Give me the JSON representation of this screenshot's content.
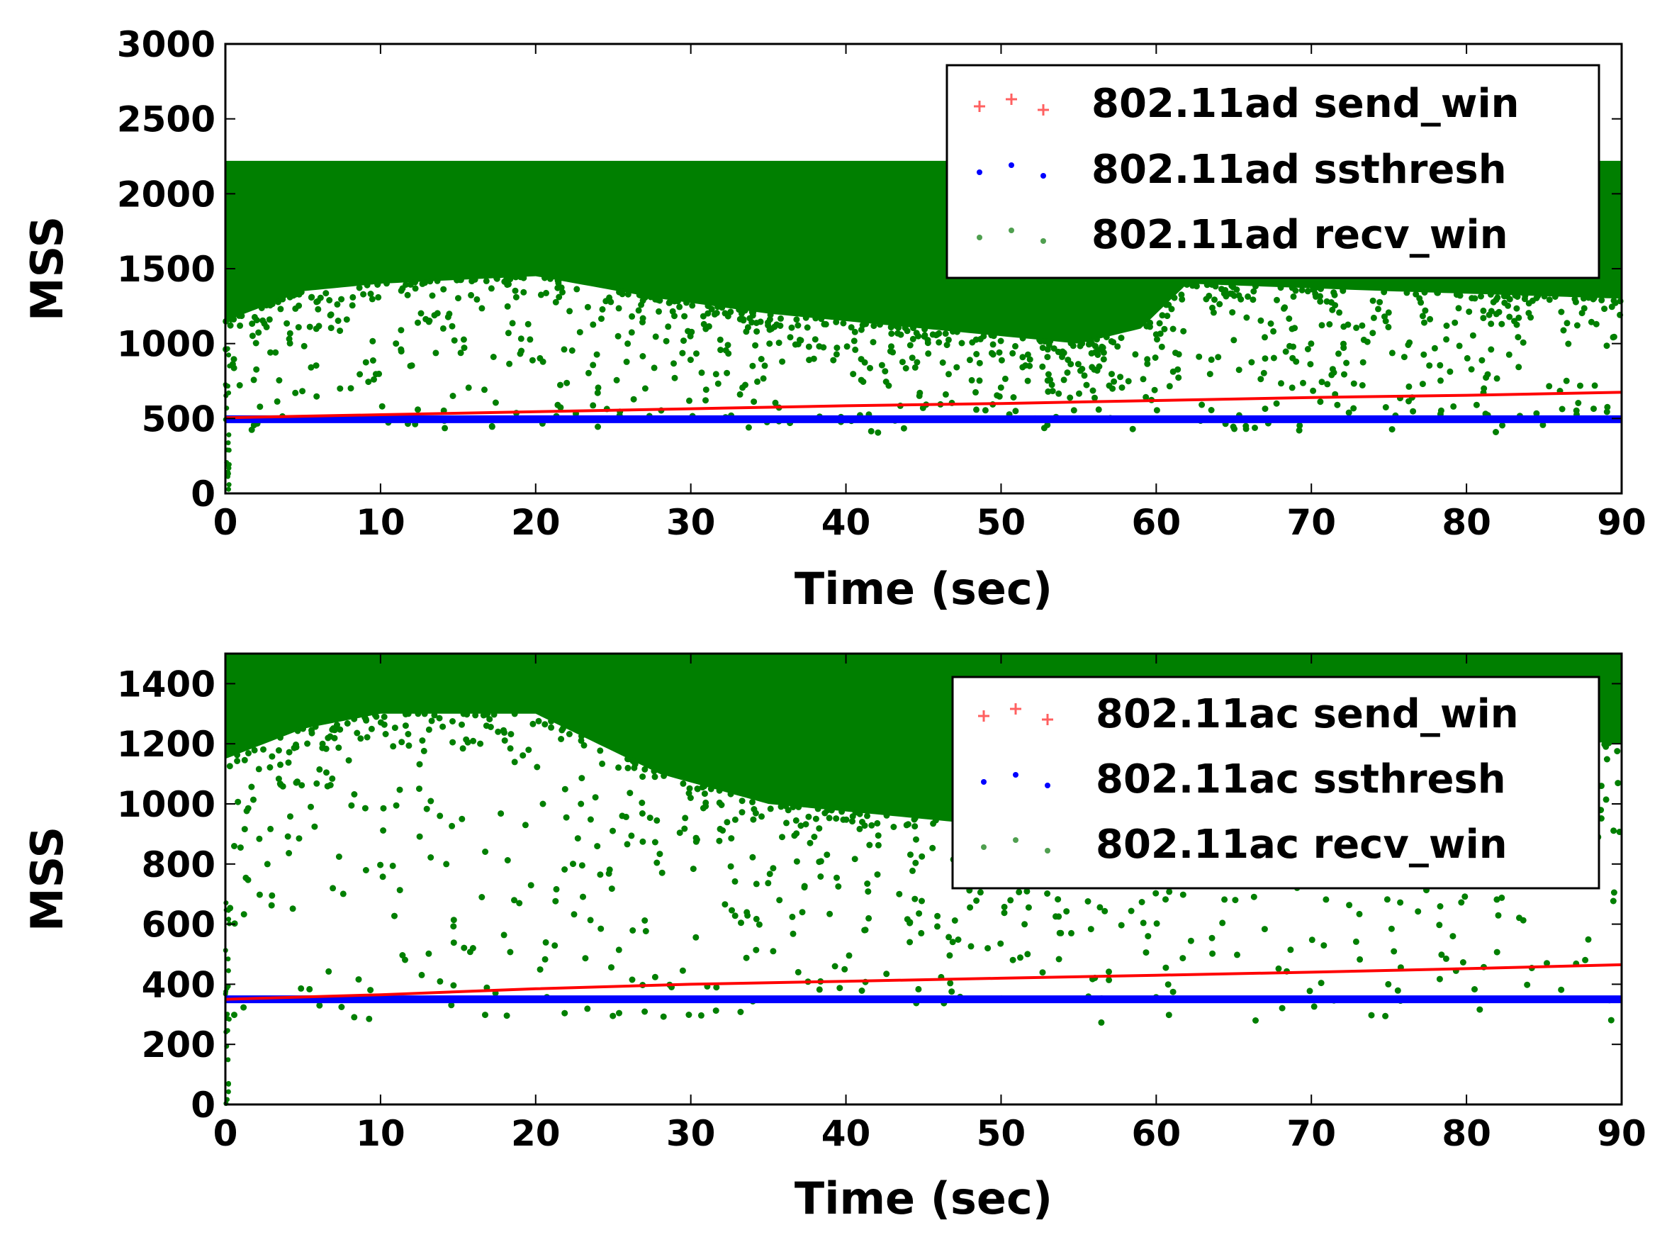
{
  "chart_data": [
    {
      "type": "scatter",
      "xlabel": "Time (sec)",
      "ylabel": "MSS",
      "xlim": [
        0,
        90
      ],
      "ylim": [
        0,
        3000
      ],
      "xticks": [
        "0",
        "10",
        "20",
        "30",
        "40",
        "50",
        "60",
        "70",
        "80",
        "90"
      ],
      "yticks": [
        "0",
        "500",
        "1000",
        "1500",
        "2000",
        "2500",
        "3000"
      ],
      "legend_position": "top-right",
      "grid": false,
      "series": [
        {
          "name": "802.11ad send_win",
          "color": "#ff0000",
          "marker": "plus",
          "x": [
            0,
            10,
            20,
            30,
            40,
            50,
            60,
            70,
            80,
            90
          ],
          "y": [
            505,
            525,
            545,
            565,
            585,
            600,
            620,
            640,
            655,
            675
          ]
        },
        {
          "name": "802.11ad ssthresh",
          "color": "#0000ff",
          "marker": "dot",
          "x": [
            0,
            10,
            20,
            30,
            40,
            50,
            60,
            70,
            80,
            90
          ],
          "y": [
            495,
            495,
            495,
            495,
            495,
            495,
            495,
            495,
            495,
            495
          ]
        },
        {
          "name": "802.11ad recv_win",
          "color": "#007f00",
          "marker": "dot",
          "y_upper": 2220,
          "dense_lower": [
            [
              0,
              1150
            ],
            [
              5,
              1350
            ],
            [
              10,
              1400
            ],
            [
              20,
              1450
            ],
            [
              28,
              1300
            ],
            [
              35,
              1200
            ],
            [
              45,
              1100
            ],
            [
              55,
              1000
            ],
            [
              59,
              1100
            ],
            [
              62,
              1400
            ],
            [
              75,
              1350
            ],
            [
              90,
              1300
            ]
          ]
        }
      ]
    },
    {
      "type": "scatter",
      "xlabel": "Time (sec)",
      "ylabel": "MSS",
      "xlim": [
        0,
        90
      ],
      "ylim": [
        0,
        1500
      ],
      "xticks": [
        "0",
        "10",
        "20",
        "30",
        "40",
        "50",
        "60",
        "70",
        "80",
        "90"
      ],
      "yticks": [
        "0",
        "200",
        "400",
        "600",
        "800",
        "1000",
        "1200",
        "1400"
      ],
      "legend_position": "top-right",
      "grid": false,
      "series": [
        {
          "name": "802.11ac send_win",
          "color": "#ff0000",
          "marker": "plus",
          "x": [
            0,
            10,
            20,
            30,
            40,
            50,
            60,
            70,
            80,
            90
          ],
          "y": [
            350,
            365,
            385,
            400,
            410,
            420,
            430,
            440,
            452,
            465
          ]
        },
        {
          "name": "802.11ac ssthresh",
          "color": "#0000ff",
          "marker": "dot",
          "x": [
            0,
            10,
            20,
            30,
            40,
            50,
            60,
            70,
            80,
            90
          ],
          "y": [
            350,
            350,
            350,
            350,
            350,
            350,
            350,
            350,
            350,
            350
          ]
        },
        {
          "name": "802.11ac recv_win",
          "color": "#007f00",
          "marker": "dot",
          "y_upper": 1500,
          "dense_lower": [
            [
              0,
              1150
            ],
            [
              5,
              1250
            ],
            [
              10,
              1300
            ],
            [
              20,
              1300
            ],
            [
              28,
              1100
            ],
            [
              35,
              1000
            ],
            [
              45,
              950
            ],
            [
              55,
              900
            ],
            [
              59,
              1000
            ],
            [
              62,
              1250
            ],
            [
              75,
              1250
            ],
            [
              90,
              1200
            ]
          ]
        }
      ]
    }
  ]
}
